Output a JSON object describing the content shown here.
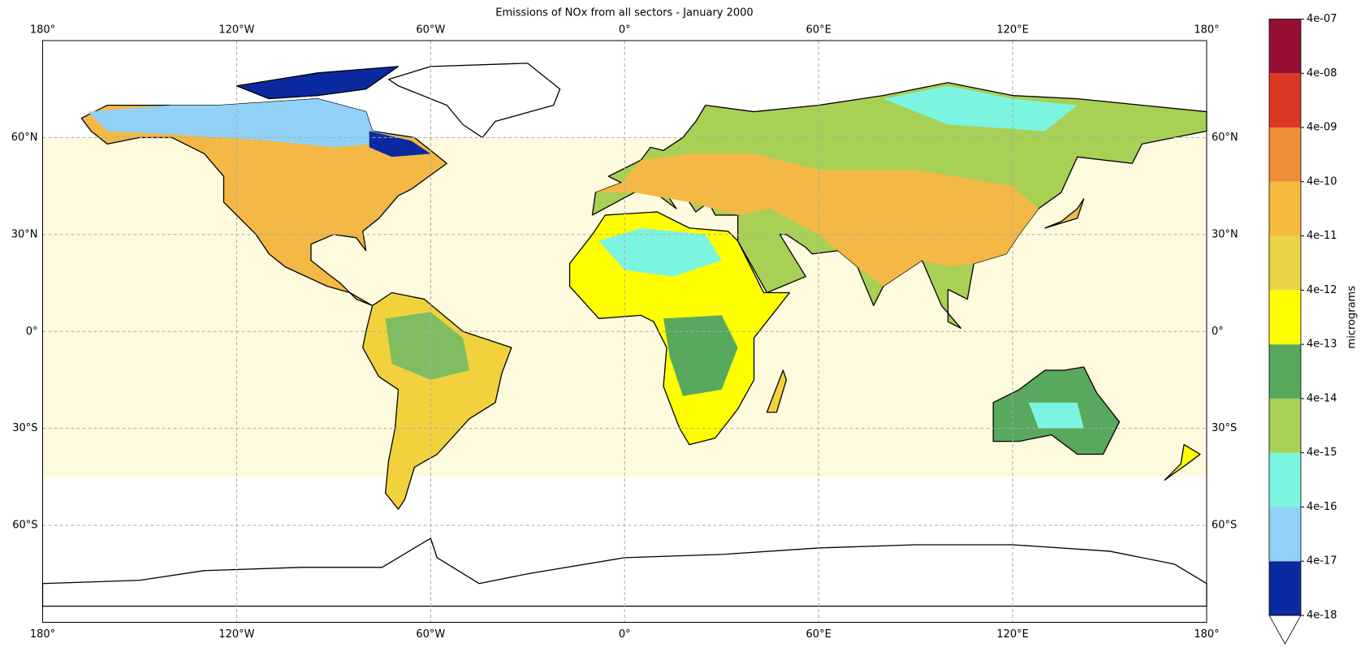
{
  "title": "Emissions of NOx from all sectors - January 2000",
  "map": {
    "projection": "plate-carree",
    "xlim": [
      -180,
      180
    ],
    "ylim": [
      -90,
      90
    ],
    "grid": true,
    "xticks": [
      {
        "value": -180,
        "label": "180°"
      },
      {
        "value": -120,
        "label": "120°W"
      },
      {
        "value": -60,
        "label": "60°W"
      },
      {
        "value": 0,
        "label": "0°"
      },
      {
        "value": 60,
        "label": "60°E"
      },
      {
        "value": 120,
        "label": "120°E"
      },
      {
        "value": 180,
        "label": "180°"
      }
    ],
    "yticks": [
      {
        "value": 60,
        "label": "60°N"
      },
      {
        "value": 30,
        "label": "30°N"
      },
      {
        "value": 0,
        "label": "0°"
      },
      {
        "value": -30,
        "label": "30°S"
      },
      {
        "value": -60,
        "label": "60°S"
      }
    ]
  },
  "colorbar": {
    "label": "micrograms",
    "scale": "log",
    "lim": [
      4e-18,
      4e-07
    ],
    "extend": "min",
    "ticks": [
      {
        "value": 4e-18,
        "label": "4e-18"
      },
      {
        "value": 4e-17,
        "label": "4e-17"
      },
      {
        "value": 4e-16,
        "label": "4e-16"
      },
      {
        "value": 4e-15,
        "label": "4e-15"
      },
      {
        "value": 4e-14,
        "label": "4e-14"
      },
      {
        "value": 4e-13,
        "label": "4e-13"
      },
      {
        "value": 4e-12,
        "label": "4e-12"
      },
      {
        "value": 4e-11,
        "label": "4e-11"
      },
      {
        "value": 4e-10,
        "label": "4e-10"
      },
      {
        "value": 4e-09,
        "label": "4e-09"
      },
      {
        "value": 4e-08,
        "label": "4e-08"
      },
      {
        "value": 4e-07,
        "label": "4e-07"
      }
    ],
    "colors": [
      "#0b2aa0",
      "#92d1f7",
      "#7cf5e0",
      "#a7d055",
      "#58a85d",
      "#ffff00",
      "#ebd346",
      "#f5b93d",
      "#f08d38",
      "#da3823",
      "#961034"
    ]
  }
}
